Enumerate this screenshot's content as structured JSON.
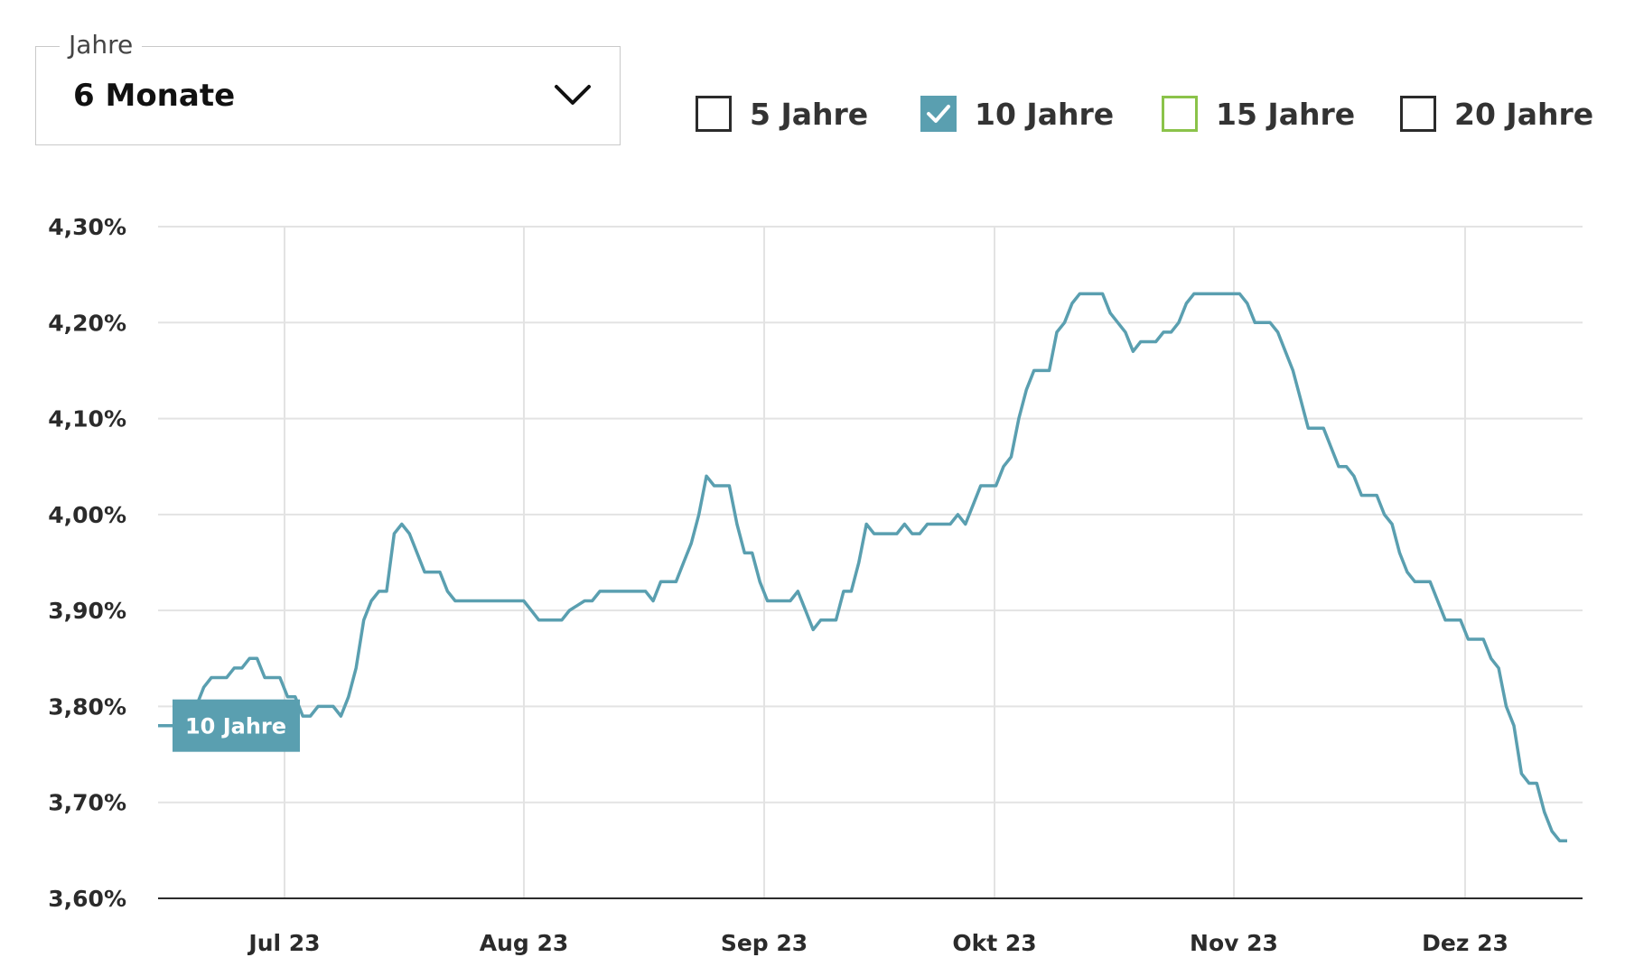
{
  "period": {
    "legend": "Jahre",
    "value": "6 Monate"
  },
  "series_toggles": [
    {
      "label": "5 Jahre",
      "checked": false,
      "color": "#2b2b2b"
    },
    {
      "label": "10 Jahre",
      "checked": true,
      "color": "#5a9fb0"
    },
    {
      "label": "15 Jahre",
      "checked": false,
      "color": "#8bc34a"
    },
    {
      "label": "20 Jahre",
      "checked": false,
      "color": "#2b2b2b"
    }
  ],
  "chart_data": {
    "type": "line",
    "ylim": [
      3.6,
      4.3
    ],
    "yticks": [
      "4,30%",
      "4,20%",
      "4,10%",
      "4,00%",
      "3,90%",
      "3,80%",
      "3,70%",
      "3,60%"
    ],
    "yvalues": [
      4.3,
      4.2,
      4.1,
      4.0,
      3.9,
      3.8,
      3.7,
      3.6
    ],
    "xticks": [
      "Jul 23",
      "Aug 23",
      "Sep 23",
      "Okt 23",
      "Nov 23",
      "Dez 23"
    ],
    "grid": true,
    "series": [
      {
        "name": "10 Jahre",
        "color": "#5a9fb0",
        "values": [
          3.78,
          3.78,
          3.78,
          3.78,
          3.78,
          3.8,
          3.82,
          3.83,
          3.83,
          3.83,
          3.84,
          3.84,
          3.85,
          3.85,
          3.83,
          3.83,
          3.83,
          3.81,
          3.81,
          3.79,
          3.79,
          3.8,
          3.8,
          3.8,
          3.79,
          3.81,
          3.84,
          3.89,
          3.91,
          3.92,
          3.92,
          3.98,
          3.99,
          3.98,
          3.96,
          3.94,
          3.94,
          3.94,
          3.92,
          3.91,
          3.91,
          3.91,
          3.91,
          3.91,
          3.91,
          3.91,
          3.91,
          3.91,
          3.91,
          3.9,
          3.89,
          3.89,
          3.89,
          3.89,
          3.9,
          3.905,
          3.91,
          3.91,
          3.92,
          3.92,
          3.92,
          3.92,
          3.92,
          3.92,
          3.92,
          3.91,
          3.93,
          3.93,
          3.93,
          3.95,
          3.97,
          4.0,
          4.04,
          4.03,
          4.03,
          4.03,
          3.99,
          3.96,
          3.96,
          3.93,
          3.91,
          3.91,
          3.91,
          3.91,
          3.92,
          3.9,
          3.88,
          3.89,
          3.89,
          3.89,
          3.92,
          3.92,
          3.95,
          3.99,
          3.98,
          3.98,
          3.98,
          3.98,
          3.99,
          3.98,
          3.98,
          3.99,
          3.99,
          3.99,
          3.99,
          4.0,
          3.99,
          4.01,
          4.03,
          4.03,
          4.03,
          4.05,
          4.06,
          4.1,
          4.13,
          4.15,
          4.15,
          4.15,
          4.19,
          4.2,
          4.22,
          4.23,
          4.23,
          4.23,
          4.23,
          4.21,
          4.2,
          4.19,
          4.17,
          4.18,
          4.18,
          4.18,
          4.19,
          4.19,
          4.2,
          4.22,
          4.23,
          4.23,
          4.23,
          4.23,
          4.23,
          4.23,
          4.23,
          4.22,
          4.2,
          4.2,
          4.2,
          4.19,
          4.17,
          4.15,
          4.12,
          4.09,
          4.09,
          4.09,
          4.07,
          4.05,
          4.05,
          4.04,
          4.02,
          4.02,
          4.02,
          4.0,
          3.99,
          3.96,
          3.94,
          3.93,
          3.93,
          3.93,
          3.91,
          3.89,
          3.89,
          3.89,
          3.87,
          3.87,
          3.87,
          3.85,
          3.84,
          3.8,
          3.78,
          3.73,
          3.72,
          3.72,
          3.69,
          3.67,
          3.66,
          3.66
        ]
      }
    ],
    "badge_label": "10 Jahre"
  }
}
